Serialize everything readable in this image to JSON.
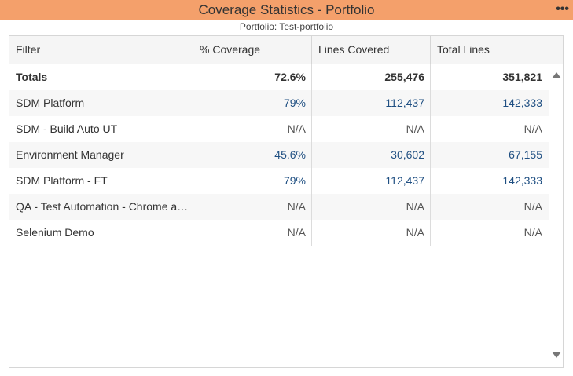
{
  "window": {
    "title": "Coverage Statistics - Portfolio",
    "more_label": "•••",
    "subtitle": "Portfolio: Test-portfolio"
  },
  "table": {
    "headers": [
      "Filter",
      "% Coverage",
      "Lines Covered",
      "Total Lines"
    ],
    "totals": {
      "filter": "Totals",
      "coverage": "72.6%",
      "covered": "255,476",
      "total": "351,821"
    },
    "rows": [
      {
        "filter": "SDM Platform",
        "coverage": "79%",
        "covered": "112,437",
        "total": "142,333"
      },
      {
        "filter": "SDM - Build Auto UT",
        "coverage": "N/A",
        "covered": "N/A",
        "total": "N/A"
      },
      {
        "filter": "Environment Manager",
        "coverage": "45.6%",
        "covered": "30,602",
        "total": "67,155"
      },
      {
        "filter": "SDM Platform - FT",
        "coverage": "79%",
        "covered": "112,437",
        "total": "142,333"
      },
      {
        "filter": "QA - Test Automation - Chrome a…",
        "coverage": "N/A",
        "covered": "N/A",
        "total": "N/A"
      },
      {
        "filter": "Selenium Demo",
        "coverage": "N/A",
        "covered": "N/A",
        "total": "N/A"
      }
    ]
  },
  "icons": {
    "more": "more-options-icon",
    "scroll_up": "scroll-up-arrow-icon",
    "scroll_down": "scroll-down-arrow-icon"
  },
  "colors": {
    "title_bar": "#f4a06b",
    "link_value": "#1f4f82"
  }
}
